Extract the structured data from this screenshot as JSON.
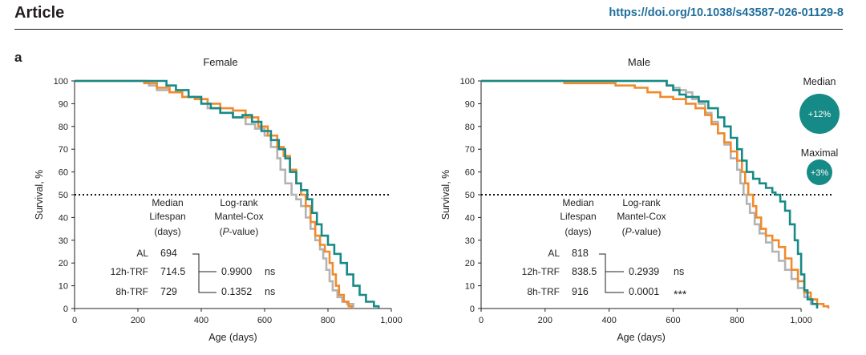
{
  "header": {
    "title": "Article",
    "doi": "https://doi.org/10.1038/s43587-026-01129-8"
  },
  "figure": {
    "panel_label": "a"
  },
  "colors": {
    "AL": "#b3b3b3",
    "12h-TRF": "#f08a2c",
    "8h-TRF": "#168a86",
    "text": "#231f20"
  },
  "chart_data": [
    {
      "type": "line",
      "title": "Female",
      "xlabel": "Age (days)",
      "ylabel": "Survival, %",
      "xlim": [
        0,
        1000
      ],
      "ylim": [
        0,
        100
      ],
      "xticks": [
        0,
        200,
        400,
        600,
        800,
        1000
      ],
      "xtick_labels": [
        "0",
        "200",
        "400",
        "600",
        "800",
        "1,000"
      ],
      "yticks": [
        0,
        10,
        20,
        30,
        40,
        50,
        60,
        70,
        80,
        90,
        100
      ],
      "reference_line": 50,
      "series": [
        {
          "name": "AL",
          "color": "#b3b3b3",
          "points": [
            [
              0,
              100
            ],
            [
              225,
              100
            ],
            [
              235,
              98
            ],
            [
              260,
              96
            ],
            [
              300,
              95
            ],
            [
              340,
              93
            ],
            [
              380,
              92
            ],
            [
              420,
              88
            ],
            [
              460,
              86
            ],
            [
              500,
              84
            ],
            [
              540,
              81
            ],
            [
              570,
              79
            ],
            [
              600,
              76
            ],
            [
              620,
              71
            ],
            [
              640,
              66
            ],
            [
              650,
              61
            ],
            [
              665,
              55
            ],
            [
              685,
              50
            ],
            [
              700,
              48
            ],
            [
              715,
              45
            ],
            [
              730,
              40
            ],
            [
              745,
              35
            ],
            [
              760,
              30
            ],
            [
              775,
              26
            ],
            [
              785,
              22
            ],
            [
              795,
              17
            ],
            [
              805,
              12
            ],
            [
              815,
              8
            ],
            [
              830,
              5
            ],
            [
              845,
              3
            ],
            [
              860,
              2
            ],
            [
              880,
              0
            ]
          ]
        },
        {
          "name": "12h-TRF",
          "color": "#f08a2c",
          "points": [
            [
              0,
              100
            ],
            [
              200,
              100
            ],
            [
              220,
              99
            ],
            [
              260,
              97
            ],
            [
              300,
              95
            ],
            [
              340,
              93
            ],
            [
              380,
              92
            ],
            [
              420,
              90
            ],
            [
              460,
              88
            ],
            [
              500,
              87
            ],
            [
              540,
              84
            ],
            [
              580,
              80
            ],
            [
              610,
              76
            ],
            [
              640,
              71
            ],
            [
              660,
              67
            ],
            [
              680,
              61
            ],
            [
              700,
              55
            ],
            [
              715,
              50
            ],
            [
              730,
              45
            ],
            [
              745,
              38
            ],
            [
              760,
              32
            ],
            [
              775,
              28
            ],
            [
              790,
              25
            ],
            [
              805,
              20
            ],
            [
              815,
              15
            ],
            [
              825,
              10
            ],
            [
              835,
              6
            ],
            [
              850,
              3
            ],
            [
              865,
              1
            ],
            [
              875,
              0
            ]
          ]
        },
        {
          "name": "8h-TRF",
          "color": "#168a86",
          "points": [
            [
              0,
              100
            ],
            [
              280,
              100
            ],
            [
              290,
              98
            ],
            [
              320,
              96
            ],
            [
              360,
              93
            ],
            [
              400,
              90
            ],
            [
              430,
              88
            ],
            [
              460,
              86
            ],
            [
              500,
              84
            ],
            [
              530,
              85
            ],
            [
              560,
              82
            ],
            [
              590,
              78
            ],
            [
              620,
              74
            ],
            [
              645,
              70
            ],
            [
              665,
              66
            ],
            [
              680,
              60
            ],
            [
              700,
              55
            ],
            [
              715,
              52
            ],
            [
              735,
              48
            ],
            [
              750,
              42
            ],
            [
              765,
              37
            ],
            [
              780,
              32
            ],
            [
              800,
              28
            ],
            [
              820,
              24
            ],
            [
              840,
              20
            ],
            [
              860,
              15
            ],
            [
              880,
              10
            ],
            [
              900,
              6
            ],
            [
              920,
              3
            ],
            [
              945,
              1
            ],
            [
              960,
              0
            ]
          ]
        }
      ],
      "annotation": {
        "head_median": [
          "Median",
          "Lifespan",
          "(days)"
        ],
        "head_logrank": [
          "Log-rank",
          "Mantel-Cox",
          "(P-value)"
        ],
        "groups": [
          {
            "label": "AL",
            "median": "694"
          },
          {
            "label": "12h-TRF",
            "median": "714.5",
            "p": "0.9900",
            "sig": "ns"
          },
          {
            "label": "8h-TRF",
            "median": "729",
            "p": "0.1352",
            "sig": "ns"
          }
        ]
      }
    },
    {
      "type": "line",
      "title": "Male",
      "xlabel": "Age (days)",
      "ylabel": "Survival, %",
      "xlim": [
        0,
        1100
      ],
      "ylim": [
        0,
        100
      ],
      "xticks": [
        0,
        200,
        400,
        600,
        800,
        1000
      ],
      "xtick_labels": [
        "0",
        "200",
        "400",
        "600",
        "800",
        "1,000"
      ],
      "yticks": [
        0,
        10,
        20,
        30,
        40,
        50,
        60,
        70,
        80,
        90,
        100
      ],
      "reference_line": 50,
      "series": [
        {
          "name": "AL",
          "color": "#b3b3b3",
          "points": [
            [
              0,
              100
            ],
            [
              560,
              100
            ],
            [
              580,
              98
            ],
            [
              600,
              97
            ],
            [
              620,
              96
            ],
            [
              640,
              95
            ],
            [
              660,
              92
            ],
            [
              680,
              90
            ],
            [
              700,
              86
            ],
            [
              720,
              82
            ],
            [
              740,
              77
            ],
            [
              760,
              72
            ],
            [
              780,
              66
            ],
            [
              800,
              61
            ],
            [
              810,
              55
            ],
            [
              820,
              50
            ],
            [
              830,
              46
            ],
            [
              840,
              42
            ],
            [
              855,
              37
            ],
            [
              870,
              33
            ],
            [
              890,
              29
            ],
            [
              910,
              25
            ],
            [
              930,
              21
            ],
            [
              950,
              17
            ],
            [
              970,
              13
            ],
            [
              990,
              9
            ],
            [
              1010,
              5
            ],
            [
              1030,
              2
            ],
            [
              1050,
              0
            ]
          ]
        },
        {
          "name": "12h-TRF",
          "color": "#f08a2c",
          "points": [
            [
              0,
              100
            ],
            [
              260,
              100
            ],
            [
              260,
              99
            ],
            [
              420,
              98
            ],
            [
              480,
              97
            ],
            [
              520,
              95
            ],
            [
              560,
              93
            ],
            [
              600,
              92
            ],
            [
              640,
              90
            ],
            [
              670,
              88
            ],
            [
              700,
              85
            ],
            [
              720,
              81
            ],
            [
              740,
              77
            ],
            [
              760,
              73
            ],
            [
              780,
              69
            ],
            [
              800,
              65
            ],
            [
              815,
              60
            ],
            [
              825,
              55
            ],
            [
              835,
              50
            ],
            [
              850,
              45
            ],
            [
              860,
              40
            ],
            [
              875,
              35
            ],
            [
              890,
              32
            ],
            [
              910,
              30
            ],
            [
              930,
              27
            ],
            [
              950,
              22
            ],
            [
              970,
              17
            ],
            [
              990,
              12
            ],
            [
              1010,
              7
            ],
            [
              1030,
              4
            ],
            [
              1050,
              2
            ],
            [
              1070,
              1
            ],
            [
              1085,
              0
            ]
          ]
        },
        {
          "name": "8h-TRF",
          "color": "#168a86",
          "points": [
            [
              0,
              100
            ],
            [
              560,
              100
            ],
            [
              580,
              98
            ],
            [
              600,
              96
            ],
            [
              620,
              94
            ],
            [
              640,
              93
            ],
            [
              680,
              91
            ],
            [
              710,
              88
            ],
            [
              740,
              84
            ],
            [
              760,
              80
            ],
            [
              780,
              75
            ],
            [
              800,
              70
            ],
            [
              815,
              65
            ],
            [
              830,
              60
            ],
            [
              850,
              57
            ],
            [
              870,
              55
            ],
            [
              890,
              53
            ],
            [
              910,
              51
            ],
            [
              920,
              50
            ],
            [
              935,
              47
            ],
            [
              950,
              43
            ],
            [
              965,
              37
            ],
            [
              980,
              30
            ],
            [
              990,
              24
            ],
            [
              1000,
              15
            ],
            [
              1010,
              8
            ],
            [
              1020,
              4
            ],
            [
              1035,
              2
            ],
            [
              1050,
              0
            ]
          ]
        }
      ],
      "annotation": {
        "head_median": [
          "Median",
          "Lifespan",
          "(days)"
        ],
        "head_logrank": [
          "Log-rank",
          "Mantel-Cox",
          "(P-value)"
        ],
        "groups": [
          {
            "label": "AL",
            "median": "818"
          },
          {
            "label": "12h-TRF",
            "median": "838.5",
            "p": "0.2939",
            "sig": "ns"
          },
          {
            "label": "8h-TRF",
            "median": "916",
            "p": "0.0001",
            "sig": "***"
          }
        ]
      },
      "bubbles": [
        {
          "label": "Median",
          "text": "+12%",
          "value": 12
        },
        {
          "label": "Maximal",
          "text": "+3%",
          "value": 3
        }
      ]
    }
  ]
}
